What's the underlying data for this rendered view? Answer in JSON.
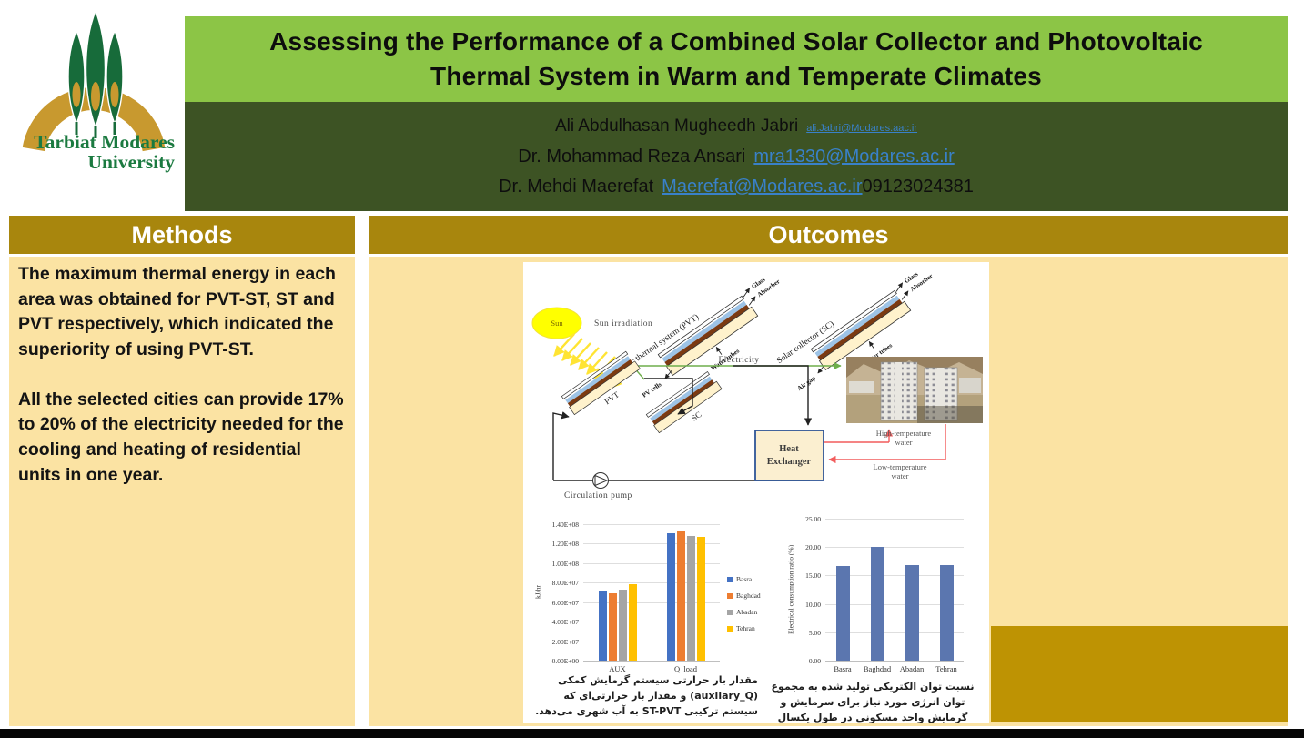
{
  "logo": {
    "line1": "Tarbiat Modares",
    "line2": "University"
  },
  "header": {
    "title_line1": "Assessing the Performance of a Combined Solar Collector and Photovoltaic",
    "title_line2": "Thermal System in Warm and Temperate Climates",
    "authors": [
      {
        "name": "Ali Abdulhasan Mugheedh Jabri",
        "email": "ali.Jabri@Modares.aac.ir",
        "suffix": ""
      },
      {
        "name": "Dr. Mohammad Reza Ansari",
        "email": "mra1330@Modares.ac.ir",
        "suffix": ""
      },
      {
        "name": "Dr. Mehdi Maerefat",
        "email": "Maerefat@Modares.ac.ir",
        "suffix": "09123024381"
      }
    ]
  },
  "methods": {
    "heading": "Methods",
    "paragraph1": "The maximum thermal energy in each area was obtained for PVT-ST, ST and PVT respectively, which indicated the superiority of using PVT-ST.",
    "paragraph2": "All the selected cities can provide 17% to 20% of the electricity needed for the cooling and heating of residential units in one year."
  },
  "outcomes": {
    "heading": "Outcomes"
  },
  "diagram": {
    "sun": "Sun",
    "sun_irradiation": "Sun irradiation",
    "pvt_system_title": "Photovoltaic thermal system (PVT)",
    "sc_title": "Solar collector (SC)",
    "glass": "Glass",
    "absorber": "Absorber",
    "pv_cells": "PV cells",
    "air_gap": "Air gap",
    "water_tubes": "Water tubes",
    "electricity": "Electricity",
    "pvt_short": "PVT",
    "sc_short": "SC",
    "heat_exchanger_line1": "Heat",
    "heat_exchanger_line2": "Exchanger",
    "high_temp_line1": "High-temperature",
    "high_temp_line2": "water",
    "low_temp_line1": "Low-temperature",
    "low_temp_line2": "water",
    "circulation_pump": "Circulation pump"
  },
  "chart_data": [
    {
      "type": "bar",
      "title": "",
      "ylabel": "kJ/hr",
      "xlabel": "",
      "categories": [
        "AUX",
        "Q_load"
      ],
      "series": [
        {
          "name": "Basra",
          "color": "#4472C4",
          "values": [
            71000000,
            131000000
          ]
        },
        {
          "name": "Baghdad",
          "color": "#ED7D31",
          "values": [
            69000000,
            133000000
          ]
        },
        {
          "name": "Abadan",
          "color": "#A5A5A5",
          "values": [
            73000000,
            128000000
          ]
        },
        {
          "name": "Tehran",
          "color": "#FFC000",
          "values": [
            78000000,
            127000000
          ]
        }
      ],
      "ylim": [
        0,
        140000000
      ],
      "ytick_step": 20000000,
      "ytick_format": "sci",
      "grid": true,
      "legend_position": "right"
    },
    {
      "type": "bar",
      "title": "",
      "ylabel": "Electrical consumption ratio (%)",
      "xlabel": "",
      "categories": [
        "Basra",
        "Baghdad",
        "Abadan",
        "Tehran"
      ],
      "series": [
        {
          "name": "Electrical consumption ratio (%)",
          "color": "#5B76AF",
          "values": [
            16.7,
            20.0,
            16.8,
            16.8
          ]
        }
      ],
      "ylim": [
        0,
        25
      ],
      "ytick_step": 5,
      "ytick_format": "fixed2",
      "grid": true,
      "legend_position": "none"
    }
  ],
  "captions": {
    "left": "مقدار بار حرارتی سیستم گرمایش کمکی (auxilary_Q) و مقدار بار حرارتی‌ای که سیستم ترکیبی ST-PVT به آب شهری می‌دهد.",
    "right": "نسبت توان الکتریکی تولید شده به مجموع توان انرژی مورد نیاز برای سرمایش و گرمایش واحد مسکونی در طول یکسال"
  },
  "colors": {
    "title_green": "#8CC546",
    "author_green": "#3D5324",
    "section_gold": "#A8860D",
    "body_gold": "#FBE3A3",
    "block_gold": "#BE9303",
    "link_blue": "#3981C9"
  }
}
